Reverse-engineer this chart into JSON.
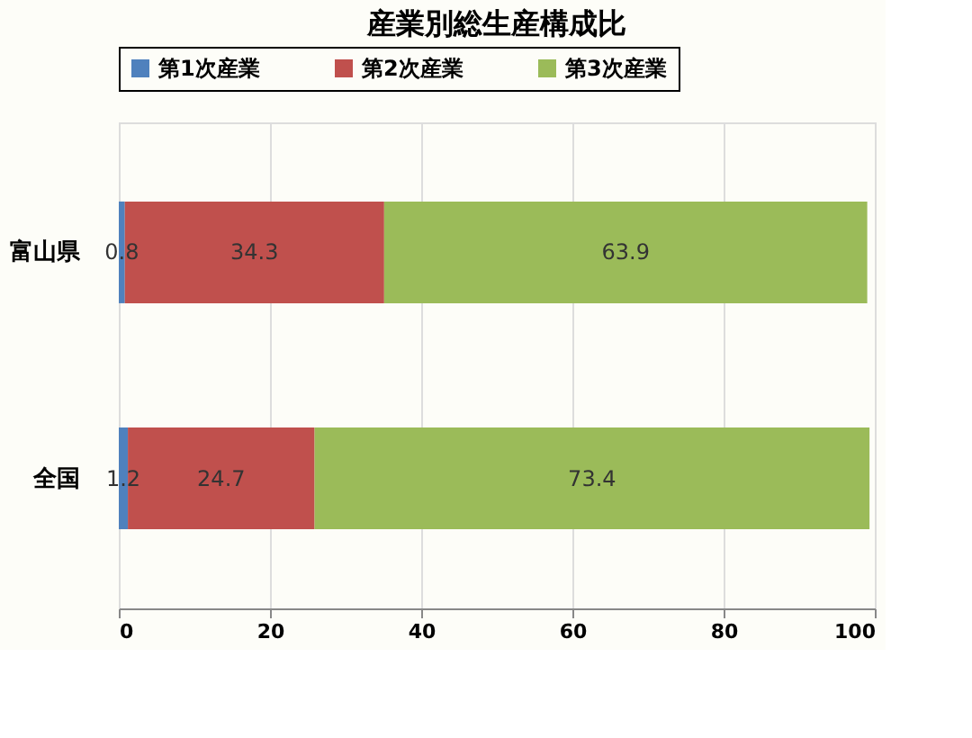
{
  "chart_data": {
    "type": "bar",
    "orientation": "horizontal",
    "stacked": true,
    "title": "産業別総生産構成比",
    "categories": [
      "富山県",
      "全国"
    ],
    "series": [
      {
        "name": "第1次産業",
        "color": "#4f81bd",
        "values": [
          0.8,
          1.2
        ]
      },
      {
        "name": "第2次産業",
        "color": "#c0504d",
        "values": [
          34.3,
          24.7
        ]
      },
      {
        "name": "第3次産業",
        "color": "#9bbb59",
        "values": [
          63.9,
          73.4
        ]
      }
    ],
    "xlim": [
      0,
      100
    ],
    "xticks": [
      0,
      20,
      40,
      60,
      80,
      100
    ],
    "grid": "x",
    "legend": "top",
    "data_labels": true
  }
}
